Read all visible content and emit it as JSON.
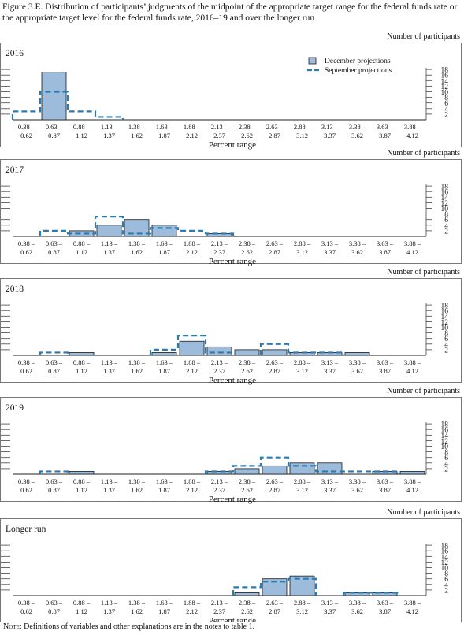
{
  "figure_title": "Figure 3.E. Distribution of participants’ judgments of the midpoint of the appropriate target range for the federal funds rate or the appropriate target level for the federal funds rate, 2016–19 and over the longer run",
  "note_label": "Note:",
  "note_text": "Definitions of variables and other explanations are in the notes to table 1.",
  "colors": {
    "bar_fill": "#9dbcdb",
    "bar_stroke": "#1a1a1a",
    "dash": "#2b7bb3"
  },
  "chart_data": [
    {
      "type": "bar",
      "title": "2016",
      "xlabel": "Percent range",
      "ylabel": "Number of participants",
      "ylim": [
        0,
        18
      ],
      "yticks": [
        2,
        4,
        6,
        8,
        10,
        12,
        14,
        16,
        18
      ],
      "legend": [
        "December projections",
        "September projections"
      ],
      "legend_position": "top-right",
      "categories": [
        [
          "0.38 –",
          "0.62"
        ],
        [
          "0.63 –",
          "0.87"
        ],
        [
          "0.88 –",
          "1.12"
        ],
        [
          "1.13 –",
          "1.37"
        ],
        [
          "1.38 –",
          "1.62"
        ],
        [
          "1.63 –",
          "1.87"
        ],
        [
          "1.88 –",
          "2.12"
        ],
        [
          "2.13 –",
          "2.37"
        ],
        [
          "2.38 –",
          "2.62"
        ],
        [
          "2.63 –",
          "2.87"
        ],
        [
          "2.88 –",
          "3.12"
        ],
        [
          "3.13 –",
          "3.37"
        ],
        [
          "3.38 –",
          "3.62"
        ],
        [
          "3.63 –",
          "3.87"
        ],
        [
          "3.88 –",
          "4.12"
        ]
      ],
      "series": [
        {
          "name": "December projections",
          "style": "bar",
          "values": [
            0,
            17,
            0,
            0,
            0,
            0,
            0,
            0,
            0,
            0,
            0,
            0,
            0,
            0,
            0
          ]
        },
        {
          "name": "September projections",
          "style": "dashed-step",
          "values": [
            3,
            10,
            3,
            1,
            0,
            0,
            0,
            0,
            0,
            0,
            0,
            0,
            0,
            0,
            0
          ]
        }
      ]
    },
    {
      "type": "bar",
      "title": "2017",
      "xlabel": "Percent range",
      "ylabel": "Number of participants",
      "ylim": [
        0,
        18
      ],
      "yticks": [
        2,
        4,
        6,
        8,
        10,
        12,
        14,
        16,
        18
      ],
      "categories": [
        [
          "0.38 –",
          "0.62"
        ],
        [
          "0.63 –",
          "0.87"
        ],
        [
          "0.88 –",
          "1.12"
        ],
        [
          "1.13 –",
          "1.37"
        ],
        [
          "1.38 –",
          "1.62"
        ],
        [
          "1.63 –",
          "1.87"
        ],
        [
          "1.88 –",
          "2.12"
        ],
        [
          "2.13 –",
          "2.37"
        ],
        [
          "2.38 –",
          "2.62"
        ],
        [
          "2.63 –",
          "2.87"
        ],
        [
          "2.88 –",
          "3.12"
        ],
        [
          "3.13 –",
          "3.37"
        ],
        [
          "3.38 –",
          "3.62"
        ],
        [
          "3.63 –",
          "3.87"
        ],
        [
          "3.88 –",
          "4.12"
        ]
      ],
      "series": [
        {
          "name": "December projections",
          "style": "bar",
          "values": [
            0,
            0,
            2,
            4,
            6,
            4,
            0,
            1,
            0,
            0,
            0,
            0,
            0,
            0,
            0
          ]
        },
        {
          "name": "September projections",
          "style": "dashed-step",
          "values": [
            0,
            2,
            1,
            7,
            1,
            3,
            2,
            1,
            0,
            0,
            0,
            0,
            0,
            0,
            0
          ]
        }
      ]
    },
    {
      "type": "bar",
      "title": "2018",
      "xlabel": "Percent range",
      "ylabel": "Number of participants",
      "ylim": [
        0,
        18
      ],
      "yticks": [
        2,
        4,
        6,
        8,
        10,
        12,
        14,
        16,
        18
      ],
      "categories": [
        [
          "0.38 –",
          "0.62"
        ],
        [
          "0.63 –",
          "0.87"
        ],
        [
          "0.88 –",
          "1.12"
        ],
        [
          "1.13 –",
          "1.37"
        ],
        [
          "1.38 –",
          "1.62"
        ],
        [
          "1.63 –",
          "1.87"
        ],
        [
          "1.88 –",
          "2.12"
        ],
        [
          "2.13 –",
          "2.37"
        ],
        [
          "2.38 –",
          "2.62"
        ],
        [
          "2.63 –",
          "2.87"
        ],
        [
          "2.88 –",
          "3.12"
        ],
        [
          "3.13 –",
          "3.37"
        ],
        [
          "3.38 –",
          "3.62"
        ],
        [
          "3.63 –",
          "3.87"
        ],
        [
          "3.88 –",
          "4.12"
        ]
      ],
      "series": [
        {
          "name": "December projections",
          "style": "bar",
          "values": [
            0,
            0,
            1,
            0,
            0,
            1,
            5,
            3,
            2,
            2,
            1,
            1,
            1,
            0,
            0
          ]
        },
        {
          "name": "September projections",
          "style": "dashed-step",
          "values": [
            0,
            1,
            0,
            0,
            0,
            2,
            7,
            1,
            0,
            4,
            1,
            1,
            0,
            0,
            0
          ]
        }
      ]
    },
    {
      "type": "bar",
      "title": "2019",
      "xlabel": "Percent range",
      "ylabel": "Number of participants",
      "ylim": [
        0,
        18
      ],
      "yticks": [
        2,
        4,
        6,
        8,
        10,
        12,
        14,
        16,
        18
      ],
      "categories": [
        [
          "0.38 –",
          "0.62"
        ],
        [
          "0.63 –",
          "0.87"
        ],
        [
          "0.88 –",
          "1.12"
        ],
        [
          "1.13 –",
          "1.37"
        ],
        [
          "1.38 –",
          "1.62"
        ],
        [
          "1.63 –",
          "1.87"
        ],
        [
          "1.88 –",
          "2.12"
        ],
        [
          "2.13 –",
          "2.37"
        ],
        [
          "2.38 –",
          "2.62"
        ],
        [
          "2.63 –",
          "2.87"
        ],
        [
          "2.88 –",
          "3.12"
        ],
        [
          "3.13 –",
          "3.37"
        ],
        [
          "3.38 –",
          "3.62"
        ],
        [
          "3.63 –",
          "3.87"
        ],
        [
          "3.88 –",
          "4.12"
        ]
      ],
      "series": [
        {
          "name": "December projections",
          "style": "bar",
          "values": [
            0,
            0,
            1,
            0,
            0,
            0,
            0,
            1,
            2,
            3,
            4,
            4,
            0,
            1,
            1
          ]
        },
        {
          "name": "September projections",
          "style": "dashed-step",
          "values": [
            0,
            1,
            0,
            0,
            0,
            0,
            0,
            1,
            3,
            6,
            3,
            1,
            1,
            1,
            0
          ]
        }
      ]
    },
    {
      "type": "bar",
      "title": "Longer run",
      "xlabel": "Percent range",
      "ylabel": "Number of participants",
      "ylim": [
        0,
        18
      ],
      "yticks": [
        2,
        4,
        6,
        8,
        10,
        12,
        14,
        16,
        18
      ],
      "categories": [
        [
          "0.38 –",
          "0.62"
        ],
        [
          "0.63 –",
          "0.87"
        ],
        [
          "0.88 –",
          "1.12"
        ],
        [
          "1.13 –",
          "1.37"
        ],
        [
          "1.38 –",
          "1.62"
        ],
        [
          "1.63 –",
          "1.87"
        ],
        [
          "1.88 –",
          "2.12"
        ],
        [
          "2.13 –",
          "2.37"
        ],
        [
          "2.38 –",
          "2.62"
        ],
        [
          "2.63 –",
          "2.87"
        ],
        [
          "2.88 –",
          "3.12"
        ],
        [
          "3.13 –",
          "3.37"
        ],
        [
          "3.38 –",
          "3.62"
        ],
        [
          "3.63 –",
          "3.87"
        ],
        [
          "3.88 –",
          "4.12"
        ]
      ],
      "series": [
        {
          "name": "December projections",
          "style": "bar",
          "values": [
            0,
            0,
            0,
            0,
            0,
            0,
            0,
            0,
            1,
            6,
            7,
            0,
            1,
            1,
            0
          ]
        },
        {
          "name": "September projections",
          "style": "dashed-step",
          "values": [
            0,
            0,
            0,
            0,
            0,
            0,
            0,
            0,
            3,
            5,
            6,
            0,
            1,
            1,
            0
          ]
        }
      ]
    }
  ]
}
